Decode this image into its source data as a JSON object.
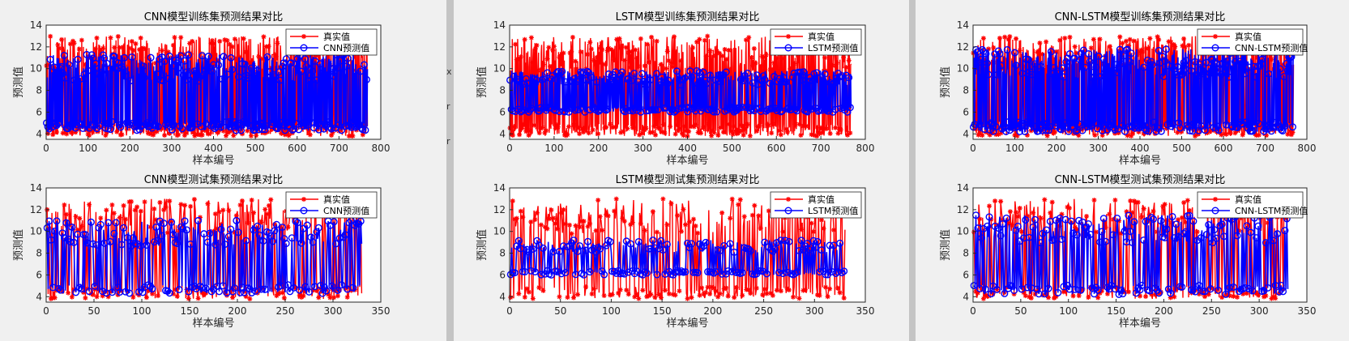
{
  "chart_data": [
    {
      "type": "line",
      "title": "CNN模型训练集预测结果对比",
      "xlabel": "样本编号",
      "ylabel": "预测值",
      "xlim": [
        0,
        800
      ],
      "ylim": [
        3.5,
        14
      ],
      "xticks": [
        0,
        100,
        200,
        300,
        400,
        500,
        600,
        700,
        800
      ],
      "yticks": [
        4,
        6,
        8,
        10,
        12,
        14
      ],
      "n": 768,
      "legend_position": "top-right",
      "series": [
        {
          "name": "真实值",
          "color": "#ff0000",
          "marker": "star",
          "seed": 11,
          "range": [
            3.8,
            13.0
          ]
        },
        {
          "name": "CNN预测值",
          "color": "#0000ff",
          "marker": "circle",
          "seed": 12,
          "range": [
            4.3,
            11.3
          ]
        }
      ]
    },
    {
      "type": "line",
      "title": "LSTM模型训练集预测结果对比",
      "xlabel": "样本编号",
      "ylabel": "预测值",
      "xlim": [
        0,
        800
      ],
      "ylim": [
        3.5,
        14
      ],
      "xticks": [
        0,
        100,
        200,
        300,
        400,
        500,
        600,
        700,
        800
      ],
      "yticks": [
        4,
        6,
        8,
        10,
        12,
        14
      ],
      "n": 768,
      "legend_position": "top-right",
      "series": [
        {
          "name": "真实值",
          "color": "#ff0000",
          "marker": "star",
          "seed": 21,
          "range": [
            3.8,
            13.0
          ]
        },
        {
          "name": "LSTM预测值",
          "color": "#0000ff",
          "marker": "circle",
          "seed": 22,
          "range": [
            6.0,
            9.8
          ]
        }
      ]
    },
    {
      "type": "line",
      "title": "CNN-LSTM模型训练集预测结果对比",
      "xlabel": "样本编号",
      "ylabel": "预测值",
      "xlim": [
        0,
        800
      ],
      "ylim": [
        3.5,
        14
      ],
      "xticks": [
        0,
        100,
        200,
        300,
        400,
        500,
        600,
        700,
        800
      ],
      "yticks": [
        4,
        6,
        8,
        10,
        12,
        14
      ],
      "n": 768,
      "legend_position": "top-right",
      "series": [
        {
          "name": "真实值",
          "color": "#ff0000",
          "marker": "star",
          "seed": 31,
          "range": [
            3.8,
            13.0
          ]
        },
        {
          "name": "CNN-LSTM预测值",
          "color": "#0000ff",
          "marker": "circle",
          "seed": 32,
          "range": [
            4.2,
            11.8
          ]
        }
      ]
    },
    {
      "type": "line",
      "title": "CNN模型测试集预测结果对比",
      "xlabel": "样本编号",
      "ylabel": "预测值",
      "xlim": [
        0,
        350
      ],
      "ylim": [
        3.5,
        14
      ],
      "xticks": [
        0,
        50,
        100,
        150,
        200,
        250,
        300,
        350
      ],
      "yticks": [
        4,
        6,
        8,
        10,
        12,
        14
      ],
      "n": 330,
      "legend_position": "top-right",
      "series": [
        {
          "name": "真实值",
          "color": "#ff0000",
          "marker": "star",
          "seed": 41,
          "range": [
            3.8,
            13.0
          ]
        },
        {
          "name": "CNN预测值",
          "color": "#0000ff",
          "marker": "circle",
          "seed": 42,
          "range": [
            4.3,
            11.0
          ]
        }
      ]
    },
    {
      "type": "line",
      "title": "LSTM模型测试集预测结果对比",
      "xlabel": "样本编号",
      "ylabel": "预测值",
      "xlim": [
        0,
        350
      ],
      "ylim": [
        3.5,
        14
      ],
      "xticks": [
        0,
        50,
        100,
        150,
        200,
        250,
        300,
        350
      ],
      "yticks": [
        4,
        6,
        8,
        10,
        12,
        14
      ],
      "n": 330,
      "legend_position": "top-right",
      "series": [
        {
          "name": "真实值",
          "color": "#ff0000",
          "marker": "star",
          "seed": 51,
          "range": [
            3.8,
            13.0
          ]
        },
        {
          "name": "LSTM预测值",
          "color": "#0000ff",
          "marker": "circle",
          "seed": 52,
          "range": [
            6.0,
            9.2
          ]
        }
      ]
    },
    {
      "type": "line",
      "title": "CNN-LSTM模型测试集预测结果对比",
      "xlabel": "样本编号",
      "ylabel": "预测值",
      "xlim": [
        0,
        350
      ],
      "ylim": [
        3.5,
        14
      ],
      "xticks": [
        0,
        50,
        100,
        150,
        200,
        250,
        300,
        350
      ],
      "yticks": [
        4,
        6,
        8,
        10,
        12,
        14
      ],
      "n": 330,
      "legend_position": "top-right",
      "series": [
        {
          "name": "真实值",
          "color": "#ff0000",
          "marker": "star",
          "seed": 61,
          "range": [
            3.8,
            13.0
          ]
        },
        {
          "name": "CNN-LSTM预测值",
          "color": "#0000ff",
          "marker": "circle",
          "seed": 62,
          "range": [
            4.2,
            11.5
          ]
        }
      ]
    }
  ],
  "edge_marks": [
    "x",
    "r",
    "r"
  ]
}
